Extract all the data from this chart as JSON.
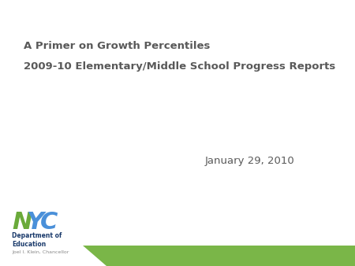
{
  "title_line1": "A Primer on Growth Percentiles",
  "title_line2": "2009-10 Elementary/Middle School Progress Reports",
  "date_text": "January 29, 2010",
  "bg_color": "#ffffff",
  "text_color": "#595959",
  "title_fontsize": 9.5,
  "date_fontsize": 9.5,
  "green_bar_color": "#7ab648",
  "nyc_N_color": "#6aaa3a",
  "nyc_Y_color": "#4a90d9",
  "nyc_C_color": "#4a90d9",
  "dept_text_color": "#1a3a6b",
  "chancellor_text_color": "#888888"
}
